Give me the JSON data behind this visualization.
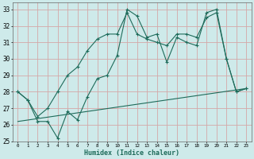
{
  "xlabel": "Humidex (Indice chaleur)",
  "xlim": [
    -0.5,
    23.5
  ],
  "ylim": [
    25,
    33.4
  ],
  "yticks": [
    25,
    26,
    27,
    28,
    29,
    30,
    31,
    32,
    33
  ],
  "xtick_labels": [
    "0",
    "1",
    "2",
    "3",
    "4",
    "5",
    "6",
    "7",
    "8",
    "9",
    "10",
    "11",
    "12",
    "13",
    "14",
    "15",
    "16",
    "17",
    "18",
    "19",
    "20",
    "21",
    "22",
    "23"
  ],
  "bg_color": "#ceeaea",
  "grid_color": "#d4a8a8",
  "line_color": "#1e6b5a",
  "line1_x": [
    0,
    1,
    2,
    3,
    4,
    5,
    6,
    7,
    8,
    9,
    10,
    11,
    12,
    13,
    14,
    15,
    16,
    17,
    18,
    19,
    20,
    21,
    22,
    23
  ],
  "line1_y": [
    28.0,
    27.5,
    26.2,
    26.2,
    25.2,
    26.8,
    26.3,
    27.7,
    28.8,
    29.0,
    30.2,
    33.0,
    32.6,
    31.3,
    31.5,
    29.8,
    31.3,
    31.0,
    30.8,
    32.8,
    33.0,
    30.0,
    28.0,
    28.2
  ],
  "line2_x": [
    0,
    23
  ],
  "line2_y": [
    26.2,
    28.2
  ],
  "line3_x": [
    0,
    1,
    2,
    3,
    4,
    5,
    6,
    7,
    8,
    9,
    10,
    11,
    12,
    13,
    14,
    15,
    16,
    17,
    18,
    19,
    20,
    21,
    22,
    23
  ],
  "line3_y": [
    28.0,
    27.5,
    26.5,
    27.0,
    28.0,
    29.0,
    29.5,
    30.5,
    31.2,
    31.5,
    31.5,
    32.8,
    31.5,
    31.2,
    31.0,
    30.8,
    31.5,
    31.5,
    31.3,
    32.5,
    32.8,
    30.0,
    28.0,
    28.2
  ]
}
